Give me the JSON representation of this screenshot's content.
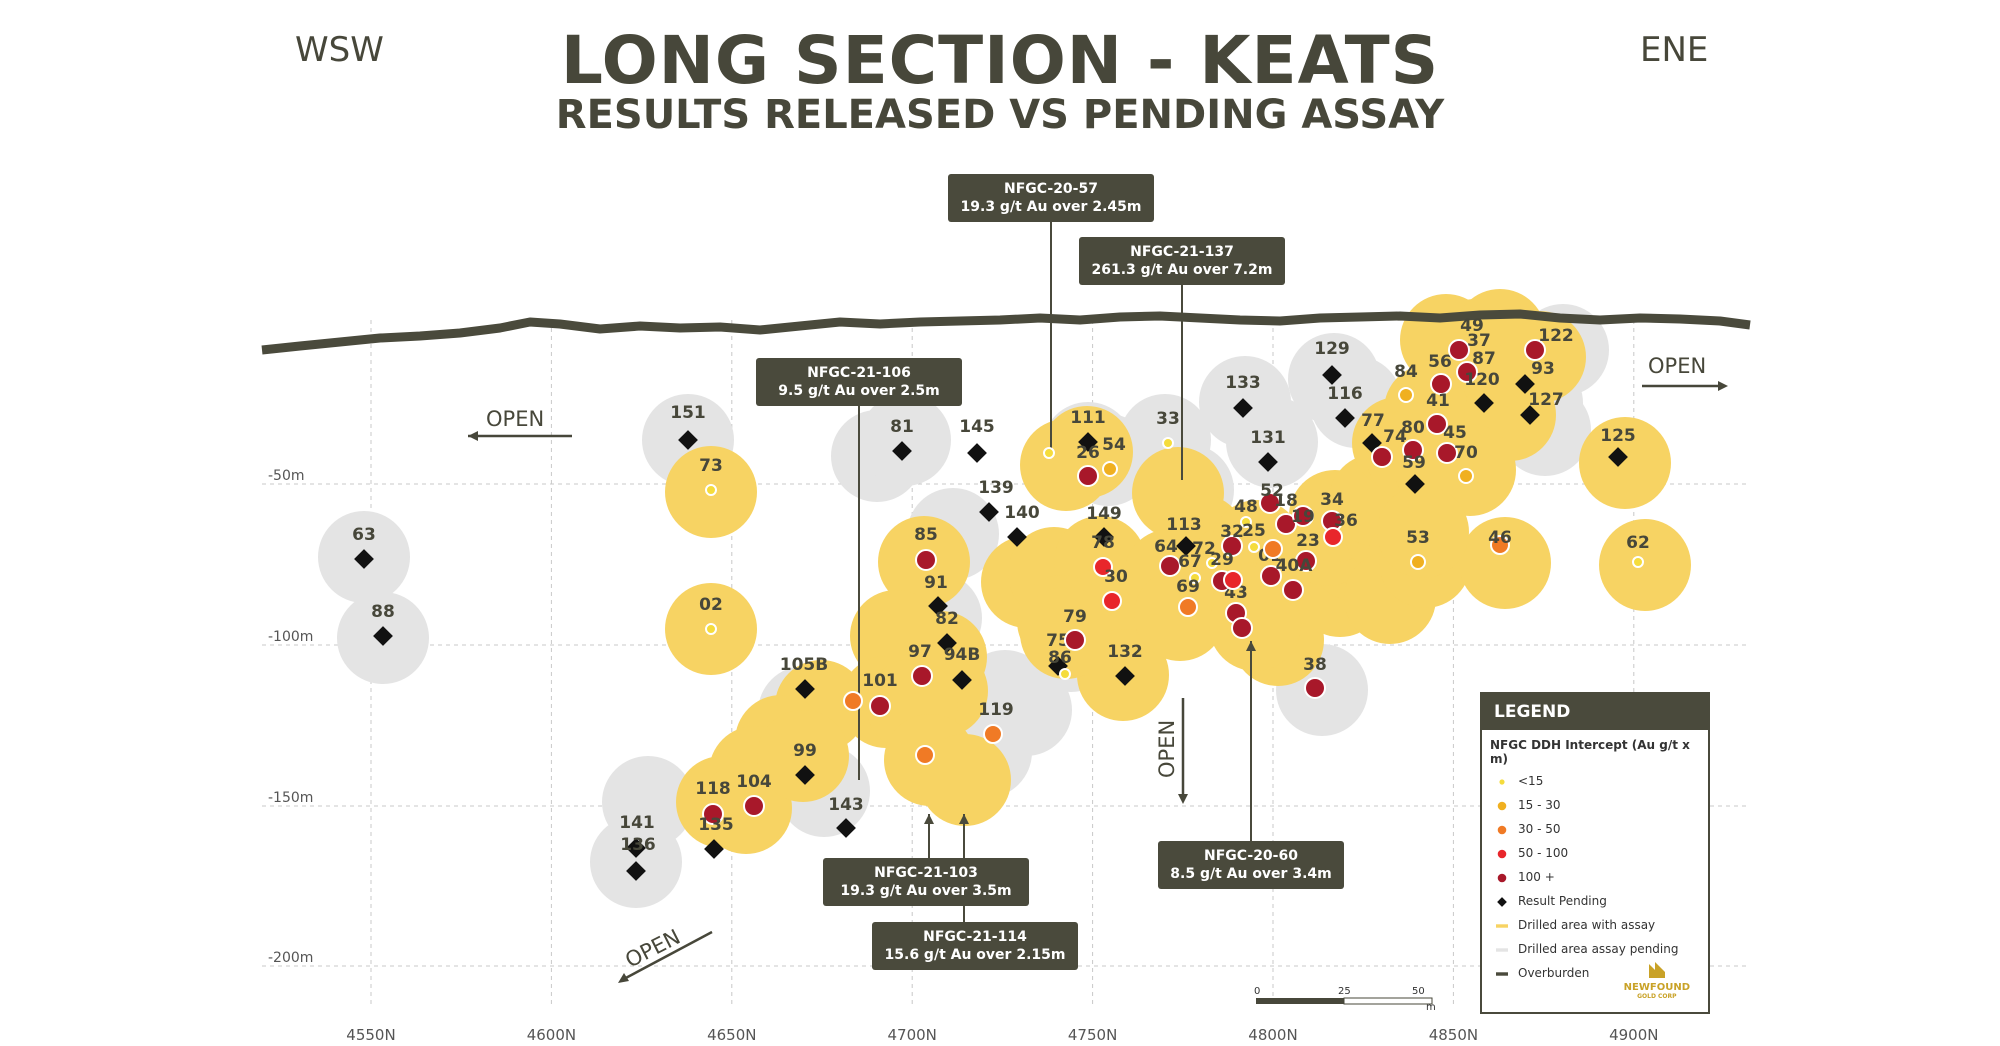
{
  "header": {
    "title": "LONG SECTION - KEATS",
    "subtitle": "RESULTS RELEASED VS PENDING ASSAY",
    "left_direction": "WSW",
    "right_direction": "ENE"
  },
  "axes": {
    "northing_labels": [
      "4550N",
      "4600N",
      "4650N",
      "4700N",
      "4750N",
      "4800N",
      "4850N",
      "4900N"
    ],
    "depth_labels": [
      "-50m",
      "-100m",
      "-150m",
      "-200m"
    ]
  },
  "open_labels": {
    "left": "OPEN",
    "right": "OPEN",
    "bottom_left": "OPEN",
    "center": "OPEN"
  },
  "colors": {
    "drilled_assay": "#f7d363",
    "drilled_pending": "#e4e4e4",
    "overburden": "#4a4a3c",
    "lt15": "#f5dc3c",
    "r15_30": "#f0b020",
    "r30_50": "#f07a25",
    "r50_100": "#e8262b",
    "r100plus": "#a8182a",
    "pending": "#111111",
    "callout_bg": "#4a4a3c"
  },
  "holes": [
    {
      "label": "63",
      "cat": "pending"
    },
    {
      "label": "88",
      "cat": "pending"
    },
    {
      "label": "151",
      "cat": "pending"
    },
    {
      "label": "73",
      "cat": "lt15"
    },
    {
      "label": "02",
      "cat": "lt15"
    },
    {
      "label": "81",
      "cat": "pending"
    },
    {
      "label": "145",
      "cat": "pending"
    },
    {
      "label": "139",
      "cat": "pending"
    },
    {
      "label": "140",
      "cat": "pending"
    },
    {
      "label": "85",
      "cat": "r100plus"
    },
    {
      "label": "91",
      "cat": "pending"
    },
    {
      "label": "82",
      "cat": "pending"
    },
    {
      "label": "97",
      "cat": "r100plus"
    },
    {
      "label": "94B",
      "cat": "pending"
    },
    {
      "label": "101",
      "cat": "r100plus"
    },
    {
      "label": "119",
      "cat": "r30_50"
    },
    {
      "label": "105B",
      "cat": "pending"
    },
    {
      "label": "99",
      "cat": "pending"
    },
    {
      "label": "104",
      "cat": "r100plus"
    },
    {
      "label": "118",
      "cat": "r100plus"
    },
    {
      "label": "135",
      "cat": "pending"
    },
    {
      "label": "141",
      "cat": "pending"
    },
    {
      "label": "136",
      "cat": "pending"
    },
    {
      "label": "143",
      "cat": "pending"
    },
    {
      "label": "111",
      "cat": "pending"
    },
    {
      "label": "26",
      "cat": "r100plus"
    },
    {
      "label": "54",
      "cat": "r15_30"
    },
    {
      "label": "149",
      "cat": "pending"
    },
    {
      "label": "78",
      "cat": "r50_100"
    },
    {
      "label": "30",
      "cat": "r50_100"
    },
    {
      "label": "75",
      "cat": "pending"
    },
    {
      "label": "79",
      "cat": "r100plus"
    },
    {
      "label": "86",
      "cat": "lt15"
    },
    {
      "label": "132",
      "cat": "pending"
    },
    {
      "label": "33",
      "cat": "lt15"
    },
    {
      "label": "133",
      "cat": "pending"
    },
    {
      "label": "131",
      "cat": "pending"
    },
    {
      "label": "129",
      "cat": "pending"
    },
    {
      "label": "116",
      "cat": "pending"
    },
    {
      "label": "113",
      "cat": "pending"
    },
    {
      "label": "64",
      "cat": "r100plus"
    },
    {
      "label": "67",
      "cat": "lt15"
    },
    {
      "label": "69",
      "cat": "r30_50"
    },
    {
      "label": "72",
      "cat": "lt15"
    },
    {
      "label": "32",
      "cat": "r100plus"
    },
    {
      "label": "29",
      "cat": "r100plus"
    },
    {
      "label": "43",
      "cat": "r100plus"
    },
    {
      "label": "48",
      "cat": "lt15"
    },
    {
      "label": "25",
      "cat": "lt15"
    },
    {
      "label": "01",
      "cat": "r100plus"
    },
    {
      "label": "52",
      "cat": "r100plus"
    },
    {
      "label": "18",
      "cat": "r100plus"
    },
    {
      "label": "19",
      "cat": "r100plus"
    },
    {
      "label": "23",
      "cat": "r100plus"
    },
    {
      "label": "40A",
      "cat": "r100plus"
    },
    {
      "label": "34",
      "cat": "r100plus"
    },
    {
      "label": "36",
      "cat": "r50_100"
    },
    {
      "label": "38",
      "cat": "r100plus"
    },
    {
      "label": "77",
      "cat": "pending"
    },
    {
      "label": "74",
      "cat": "r100plus"
    },
    {
      "label": "80",
      "cat": "r100plus"
    },
    {
      "label": "59",
      "cat": "pending"
    },
    {
      "label": "84",
      "cat": "r15_30"
    },
    {
      "label": "56",
      "cat": "r100plus"
    },
    {
      "label": "41",
      "cat": "r100plus"
    },
    {
      "label": "45",
      "cat": "r100plus"
    },
    {
      "label": "70",
      "cat": "r15_30"
    },
    {
      "label": "53",
      "cat": "r15_30"
    },
    {
      "label": "46",
      "cat": "r30_50"
    },
    {
      "label": "49",
      "cat": "none"
    },
    {
      "label": "37",
      "cat": "r100plus"
    },
    {
      "label": "87",
      "cat": "r100plus"
    },
    {
      "label": "120",
      "cat": "pending"
    },
    {
      "label": "122",
      "cat": "r100plus"
    },
    {
      "label": "93",
      "cat": "pending"
    },
    {
      "label": "127",
      "cat": "pending"
    },
    {
      "label": "125",
      "cat": "pending"
    },
    {
      "label": "62",
      "cat": "lt15"
    },
    {
      "label": "65",
      "cat": "lt15"
    },
    {
      "label": "",
      "cat": "r30_50"
    },
    {
      "label": "",
      "cat": "r30_50"
    },
    {
      "label": "",
      "cat": "r100plus"
    },
    {
      "label": "",
      "cat": "r50_100"
    },
    {
      "label": "",
      "cat": "r30_50"
    },
    {
      "label": "",
      "cat": "r100plus"
    }
  ],
  "callouts": [
    {
      "id": "NFGC-20-57",
      "text": "19.3 g/t Au over 2.45m"
    },
    {
      "id": "NFGC-21-137",
      "text": "261.3 g/t Au over 7.2m"
    },
    {
      "id": "NFGC-21-106",
      "text": "9.5 g/t Au over 2.5m"
    },
    {
      "id": "NFGC-21-103",
      "text": "19.3 g/t Au over 3.5m"
    },
    {
      "id": "NFGC-21-114",
      "text": "15.6 g/t Au over 2.15m"
    },
    {
      "id": "NFGC-20-60",
      "text": "8.5 g/t Au over 3.4m"
    }
  ],
  "legend": {
    "title": "LEGEND",
    "subtitle": "NFGC DDH Intercept (Au g/t x m)",
    "items": [
      {
        "label": "<15",
        "kind": "dot-small",
        "color": "#f5dc3c"
      },
      {
        "label": "15 - 30",
        "kind": "dot",
        "color": "#f0b020"
      },
      {
        "label": "30 - 50",
        "kind": "dot",
        "color": "#f07a25"
      },
      {
        "label": "50 - 100",
        "kind": "dot",
        "color": "#e8262b"
      },
      {
        "label": "100 +",
        "kind": "dot",
        "color": "#a8182a"
      },
      {
        "label": "Result Pending",
        "kind": "diamond",
        "color": "#111111"
      },
      {
        "label": "Drilled area with assay",
        "kind": "bar",
        "color": "#f7d363"
      },
      {
        "label": "Drilled area assay pending",
        "kind": "bar",
        "color": "#e4e4e4"
      },
      {
        "label": "Overburden",
        "kind": "bar",
        "color": "#4a4a3c"
      }
    ],
    "logo_line1": "NEWFOUND",
    "logo_line2": "GOLD CORP"
  },
  "scale_bar": {
    "ticks": [
      "0",
      "25",
      "50"
    ],
    "unit": "m"
  }
}
